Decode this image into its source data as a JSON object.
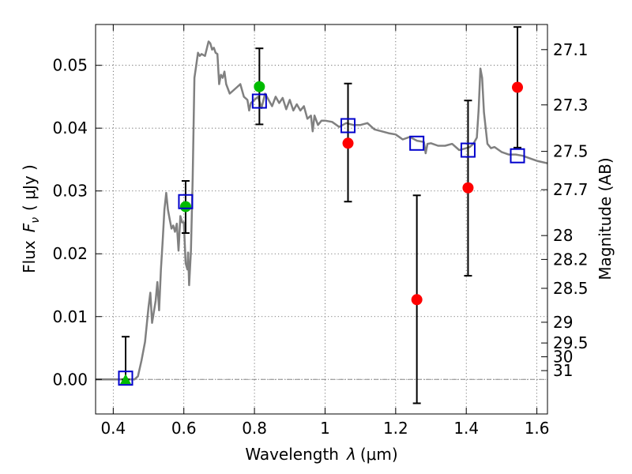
{
  "chart_data": {
    "type": "scatter",
    "xlabel": "Wavelength",
    "xlabel_symbol": "λ",
    "xlabel_unit": "(μm)",
    "ylabel": "Flux",
    "ylabel_symbol": "F",
    "ylabel_subscript": "ν",
    "ylabel_unit": "( μJy )",
    "ylabel_right": "Magnitude (AB)",
    "xlim": [
      0.35,
      1.63
    ],
    "ylim": [
      -0.0055,
      0.0565
    ],
    "grid": true,
    "colors": {
      "model": "#808080",
      "photometry_red": "#ff0000",
      "photometry_green": "#00bb00",
      "model_band": "#0000cc",
      "errorbar": "#000000"
    },
    "x_ticks": [
      {
        "value": 0.4,
        "label": "0.4"
      },
      {
        "value": 0.6,
        "label": "0.6"
      },
      {
        "value": 0.8,
        "label": "0.8"
      },
      {
        "value": 1.0,
        "label": "1"
      },
      {
        "value": 1.2,
        "label": "1.2"
      },
      {
        "value": 1.4,
        "label": "1.4"
      },
      {
        "value": 1.6,
        "label": "1.6"
      }
    ],
    "y_ticks": [
      {
        "value": 0.0,
        "label": "0.00"
      },
      {
        "value": 0.01,
        "label": "0.01"
      },
      {
        "value": 0.02,
        "label": "0.02"
      },
      {
        "value": 0.03,
        "label": "0.03"
      },
      {
        "value": 0.04,
        "label": "0.04"
      },
      {
        "value": 0.05,
        "label": "0.05"
      }
    ],
    "mag_ticks": [
      {
        "flux": 0.0525,
        "label": "27.1"
      },
      {
        "flux": 0.0437,
        "label": "27.3"
      },
      {
        "flux": 0.0363,
        "label": "27.5"
      },
      {
        "flux": 0.0302,
        "label": "27.7"
      },
      {
        "flux": 0.0229,
        "label": "28"
      },
      {
        "flux": 0.0191,
        "label": "28.2"
      },
      {
        "flux": 0.0145,
        "label": "28.5"
      },
      {
        "flux": 0.0091,
        "label": "29"
      },
      {
        "flux": 0.0058,
        "label": "29.5"
      },
      {
        "flux": 0.0036,
        "label": "30"
      },
      {
        "flux": 0.0014,
        "label": "31"
      }
    ],
    "model_spectrum": {
      "x": [
        0.35,
        0.46,
        0.47,
        0.48,
        0.49,
        0.5,
        0.505,
        0.51,
        0.52,
        0.525,
        0.53,
        0.535,
        0.54,
        0.545,
        0.55,
        0.555,
        0.56,
        0.565,
        0.57,
        0.575,
        0.58,
        0.585,
        0.59,
        0.595,
        0.6,
        0.605,
        0.61,
        0.612,
        0.615,
        0.62,
        0.625,
        0.63,
        0.635,
        0.64,
        0.645,
        0.65,
        0.66,
        0.67,
        0.675,
        0.68,
        0.685,
        0.69,
        0.695,
        0.7,
        0.705,
        0.71,
        0.715,
        0.72,
        0.73,
        0.74,
        0.75,
        0.76,
        0.77,
        0.78,
        0.785,
        0.79,
        0.8,
        0.81,
        0.82,
        0.83,
        0.84,
        0.85,
        0.86,
        0.87,
        0.88,
        0.89,
        0.9,
        0.91,
        0.92,
        0.93,
        0.94,
        0.95,
        0.96,
        0.965,
        0.97,
        0.98,
        0.99,
        1.0,
        1.02,
        1.04,
        1.06,
        1.08,
        1.1,
        1.12,
        1.14,
        1.16,
        1.18,
        1.2,
        1.22,
        1.24,
        1.26,
        1.28,
        1.285,
        1.29,
        1.3,
        1.32,
        1.34,
        1.36,
        1.38,
        1.4,
        1.41,
        1.42,
        1.43,
        1.435,
        1.44,
        1.445,
        1.45,
        1.46,
        1.47,
        1.48,
        1.5,
        1.52,
        1.54,
        1.56,
        1.58,
        1.6,
        1.63
      ],
      "y": [
        0.0,
        0.0,
        0.0005,
        0.003,
        0.006,
        0.0115,
        0.0138,
        0.009,
        0.0125,
        0.0155,
        0.011,
        0.0175,
        0.022,
        0.027,
        0.0297,
        0.027,
        0.0255,
        0.024,
        0.0245,
        0.0235,
        0.0248,
        0.0205,
        0.026,
        0.025,
        0.025,
        0.0185,
        0.0175,
        0.0202,
        0.015,
        0.0205,
        0.032,
        0.048,
        0.05,
        0.052,
        0.0515,
        0.0518,
        0.0515,
        0.0538,
        0.0535,
        0.0525,
        0.0528,
        0.052,
        0.0518,
        0.047,
        0.0485,
        0.048,
        0.049,
        0.047,
        0.0455,
        0.046,
        0.0465,
        0.047,
        0.045,
        0.0445,
        0.0428,
        0.044,
        0.0445,
        0.045,
        0.0432,
        0.0455,
        0.0445,
        0.0435,
        0.045,
        0.044,
        0.0448,
        0.043,
        0.0445,
        0.0428,
        0.0438,
        0.0428,
        0.0435,
        0.0415,
        0.042,
        0.0395,
        0.042,
        0.0405,
        0.0412,
        0.0412,
        0.041,
        0.0402,
        0.0408,
        0.0405,
        0.0405,
        0.0408,
        0.0398,
        0.0395,
        0.0392,
        0.039,
        0.0382,
        0.0386,
        0.038,
        0.0378,
        0.036,
        0.0375,
        0.0376,
        0.0372,
        0.0372,
        0.0375,
        0.0365,
        0.0368,
        0.037,
        0.0375,
        0.0385,
        0.043,
        0.0495,
        0.048,
        0.0425,
        0.0375,
        0.0368,
        0.037,
        0.0362,
        0.0358,
        0.0358,
        0.0356,
        0.0352,
        0.0348,
        0.0344
      ]
    },
    "observed": [
      {
        "x": 0.435,
        "y": 0.0,
        "err_low": 0.0,
        "err_high": 0.0068,
        "color": "green",
        "marker": "triangle"
      },
      {
        "x": 0.605,
        "y": 0.0275,
        "err_low": 0.0233,
        "err_high": 0.0316,
        "color": "green",
        "marker": "circle"
      },
      {
        "x": 0.814,
        "y": 0.0466,
        "err_low": 0.0406,
        "err_high": 0.0527,
        "color": "green",
        "marker": "circle"
      },
      {
        "x": 1.065,
        "y": 0.0376,
        "err_low": 0.0283,
        "err_high": 0.0471,
        "color": "red",
        "marker": "circle"
      },
      {
        "x": 1.26,
        "y": 0.0127,
        "err_low": -0.0038,
        "err_high": 0.0293,
        "color": "red",
        "marker": "circle"
      },
      {
        "x": 1.405,
        "y": 0.0305,
        "err_low": 0.0165,
        "err_high": 0.0444,
        "color": "red",
        "marker": "circle"
      },
      {
        "x": 1.545,
        "y": 0.0465,
        "err_low": 0.0369,
        "err_high": 0.0561,
        "color": "red",
        "marker": "circle"
      }
    ],
    "model_bands": [
      {
        "x": 0.435,
        "y": 0.0002
      },
      {
        "x": 0.605,
        "y": 0.0283
      },
      {
        "x": 0.814,
        "y": 0.0443
      },
      {
        "x": 1.065,
        "y": 0.0404
      },
      {
        "x": 1.26,
        "y": 0.0376
      },
      {
        "x": 1.405,
        "y": 0.0365
      },
      {
        "x": 1.545,
        "y": 0.0356
      }
    ]
  }
}
